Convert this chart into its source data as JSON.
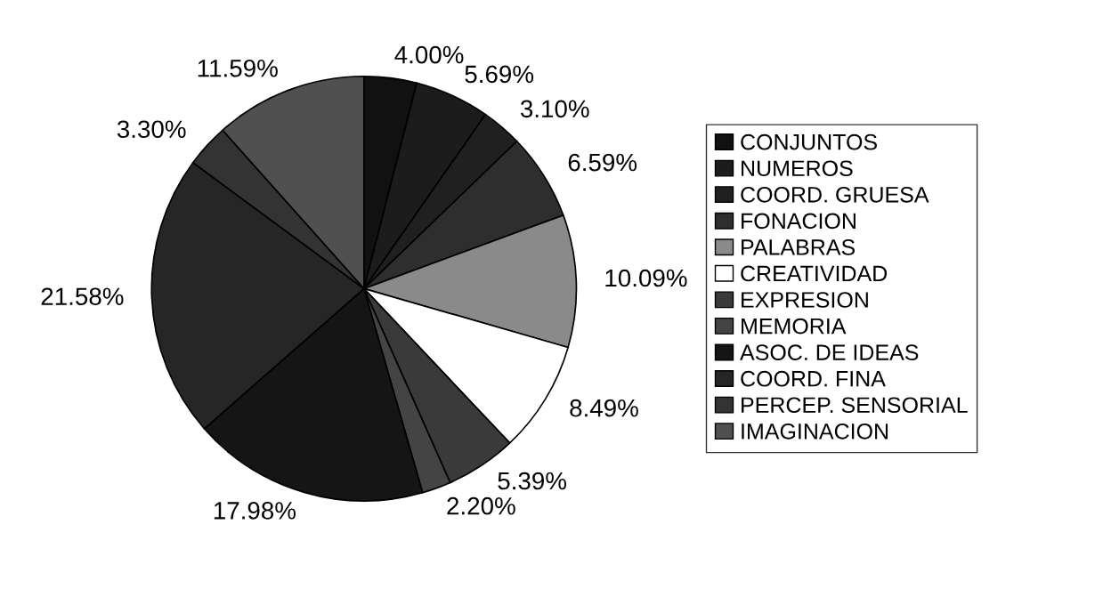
{
  "chart_data": {
    "type": "pie",
    "categories": [
      "CONJUNTOS",
      "NUMEROS",
      "COORD. GRUESA",
      "FONACION",
      "PALABRAS",
      "CREATIVIDAD",
      "EXPRESION",
      "MEMORIA",
      "ASOC. DE IDEAS",
      "COORD. FINA",
      "PERCEP. SENSORIAL",
      "IMAGINACION"
    ],
    "values": [
      4.0,
      5.69,
      3.1,
      6.59,
      10.09,
      8.49,
      5.39,
      2.2,
      17.98,
      21.58,
      3.3,
      11.59
    ],
    "value_labels": [
      "4.00%",
      "5.69%",
      "3.10%",
      "6.59%",
      "10.09%",
      "8.49%",
      "5.39%",
      "2.20%",
      "17.98%",
      "21.58%",
      "3.30%",
      "11.59%"
    ],
    "colors": [
      "#111111",
      "#1c1c1c",
      "#202020",
      "#2e2e2e",
      "#8a8a8a",
      "#ffffff",
      "#3a3a3a",
      "#444444",
      "#151515",
      "#262626",
      "#333333",
      "#505050"
    ],
    "legend": "right"
  }
}
